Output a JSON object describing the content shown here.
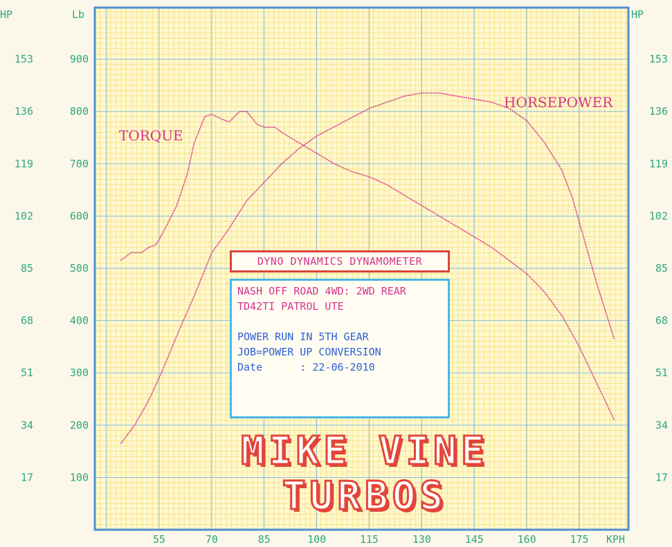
{
  "colors": {
    "background": "#fbf7ea",
    "plot_bg": "#fff8cf",
    "grid": "#f2d964",
    "frame": "#4f8fd0",
    "curve": "#d6338c",
    "axis_text": "#2ea87a",
    "title_border": "#d9443a",
    "info_border": "#49b6e6",
    "brand": "#e3453a"
  },
  "axes": {
    "left_unit": "Lb",
    "right_unit": "HP",
    "left_hp_unit": "HP",
    "x_unit": "KPH",
    "left_ticks": [
      "900",
      "800",
      "700",
      "600",
      "500",
      "400",
      "300",
      "200",
      "100"
    ],
    "hp_ticks": [
      "153",
      "136",
      "119",
      "102",
      "85",
      "68",
      "51",
      "34",
      "17"
    ],
    "x_ticks": [
      "55",
      "70",
      "85",
      "100",
      "115",
      "130",
      "145",
      "160",
      "175"
    ]
  },
  "title_box": {
    "text": "DYNO DYNAMICS DYNAMOMETER"
  },
  "info_box": {
    "line1": "NASH OFF ROAD 4WD: 2WD REAR",
    "line2": "TD42TI PATROL UTE",
    "line3": "POWER RUN IN 5TH GEAR",
    "line4": "JOB=POWER UP CONVERSION",
    "line5": "Date      : 22-06-2010"
  },
  "brand": "MIKE VINE TURBOS",
  "chart_data": {
    "type": "line",
    "xlabel": "KPH",
    "ylabel": "Lb",
    "y2label": "HP",
    "xlim": [
      40,
      188
    ],
    "ylim": [
      0,
      1000
    ],
    "y2lim": [
      0,
      170
    ],
    "series": [
      {
        "name": "TORQUE",
        "axis": "left",
        "x": [
          44,
          47,
          50,
          52,
          54,
          55,
          57,
          60,
          63,
          65,
          68,
          70,
          73,
          75,
          78,
          80,
          83,
          85,
          88,
          90,
          95,
          100,
          105,
          110,
          115,
          120,
          125,
          130,
          135,
          140,
          145,
          150,
          155,
          160,
          165,
          170,
          175,
          180,
          185
        ],
        "y": [
          515,
          530,
          530,
          540,
          545,
          555,
          580,
          620,
          680,
          740,
          790,
          795,
          785,
          780,
          800,
          800,
          775,
          770,
          770,
          760,
          740,
          720,
          700,
          685,
          675,
          660,
          640,
          620,
          600,
          580,
          560,
          540,
          515,
          490,
          455,
          410,
          350,
          280,
          210
        ]
      },
      {
        "name": "HORSEPOWER",
        "axis": "right",
        "x": [
          44,
          48,
          52,
          56,
          60,
          65,
          70,
          75,
          80,
          85,
          90,
          95,
          100,
          105,
          110,
          115,
          120,
          125,
          130,
          135,
          140,
          145,
          150,
          155,
          160,
          165,
          170,
          173,
          176,
          180,
          185
        ],
        "y": [
          28,
          34,
          42,
          52,
          63,
          76,
          90,
          98,
          107,
          113,
          119,
          124,
          128,
          131,
          134,
          137,
          139,
          141,
          142,
          142,
          141,
          140,
          139,
          137,
          133,
          126,
          117,
          108,
          96,
          80,
          62
        ]
      }
    ]
  }
}
